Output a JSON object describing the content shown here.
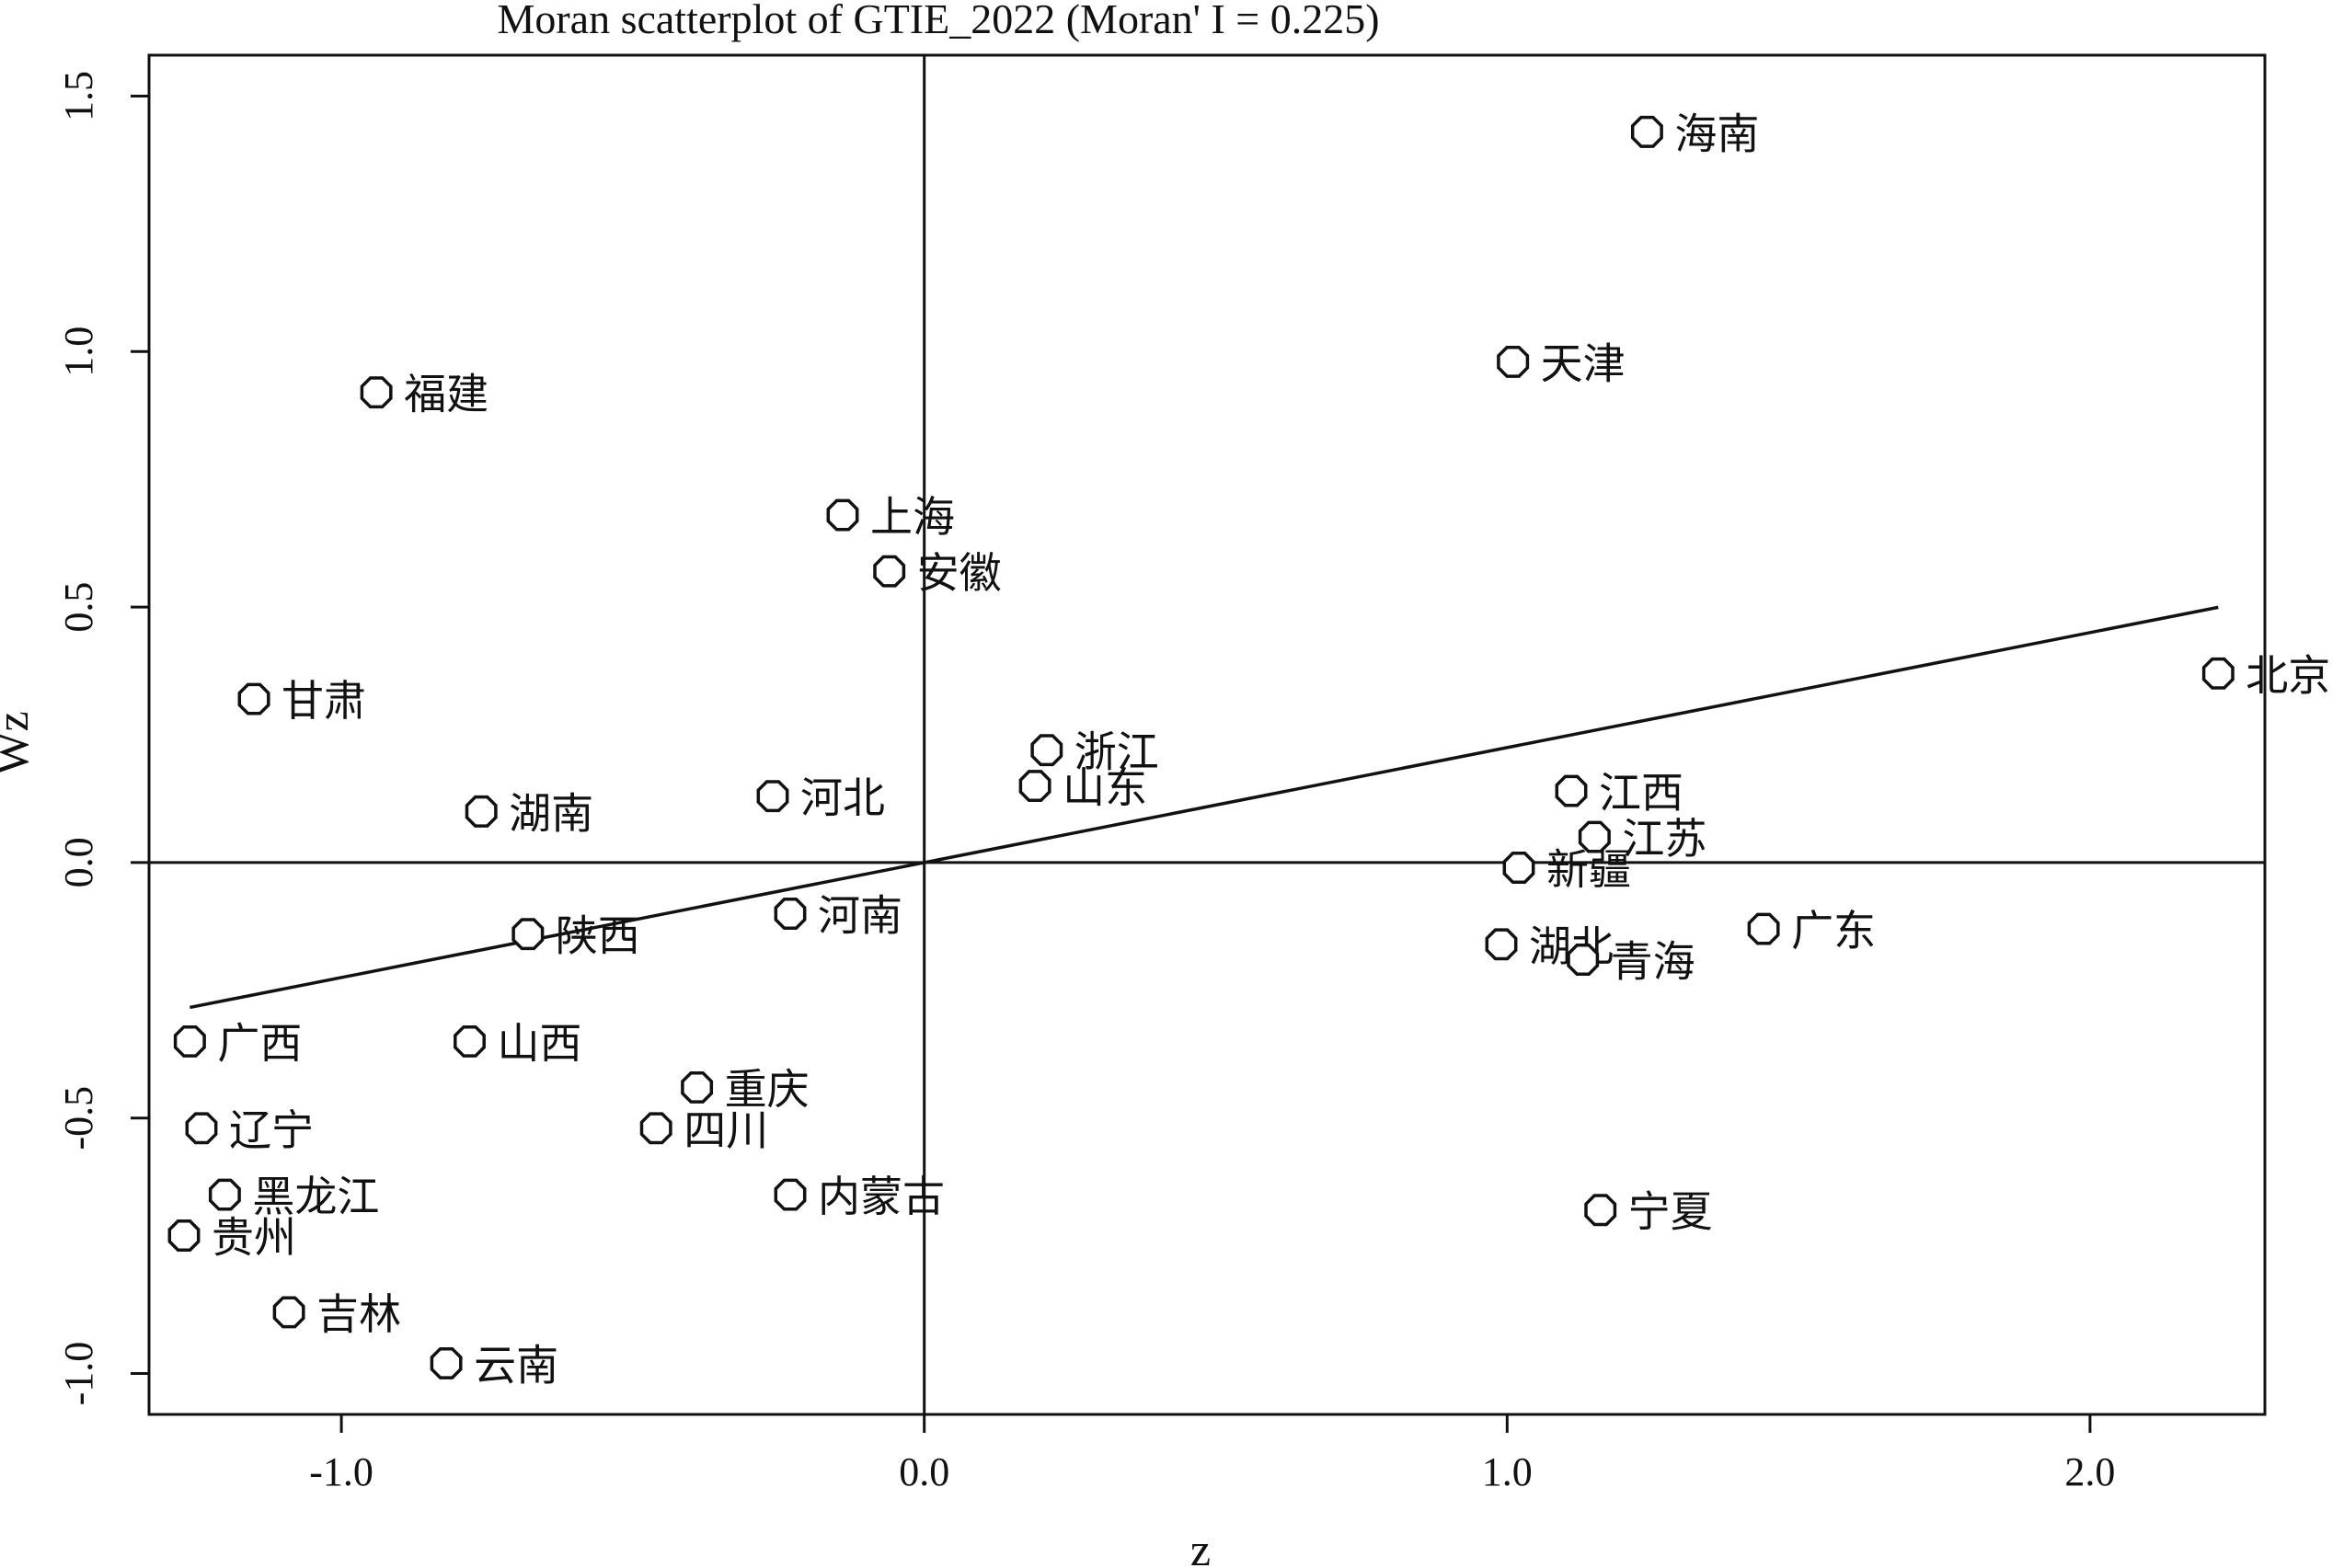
{
  "chart_data": {
    "type": "scatter",
    "title": "Moran scatterplot of GTIE_2022 (Moran' I = 0.225)",
    "xlabel": "z",
    "ylabel": "Wz",
    "xlim": [
      -1.33,
      2.3
    ],
    "ylim": [
      -1.08,
      1.58
    ],
    "xticks": [
      {
        "value": -1.0,
        "label": "-1.0"
      },
      {
        "value": 0.0,
        "label": "0.0"
      },
      {
        "value": 1.0,
        "label": "1.0"
      },
      {
        "value": 2.0,
        "label": "2.0"
      }
    ],
    "yticks": [
      {
        "value": -1.0,
        "label": "-1.0"
      },
      {
        "value": -0.5,
        "label": "-0.5"
      },
      {
        "value": 0.0,
        "label": "0.0"
      },
      {
        "value": 0.5,
        "label": "0.5"
      },
      {
        "value": 1.0,
        "label": "1.0"
      },
      {
        "value": 1.5,
        "label": "1.5"
      }
    ],
    "grid": false,
    "reference_lines": {
      "x": 0,
      "y": 0
    },
    "fit_line": {
      "slope": 0.225,
      "intercept": 0,
      "x_range": [
        -1.26,
        2.22
      ]
    },
    "points": [
      {
        "label": "海南",
        "x": 1.24,
        "y": 1.43
      },
      {
        "label": "天津",
        "x": 1.01,
        "y": 0.98
      },
      {
        "label": "福建",
        "x": -0.94,
        "y": 0.92
      },
      {
        "label": "上海",
        "x": -0.14,
        "y": 0.68
      },
      {
        "label": "安徽",
        "x": -0.06,
        "y": 0.57
      },
      {
        "label": "北京",
        "x": 2.22,
        "y": 0.37
      },
      {
        "label": "甘肃",
        "x": -1.15,
        "y": 0.32
      },
      {
        "label": "浙江",
        "x": 0.21,
        "y": 0.22
      },
      {
        "label": "山东",
        "x": 0.19,
        "y": 0.15
      },
      {
        "label": "江西",
        "x": 1.11,
        "y": 0.14
      },
      {
        "label": "河北",
        "x": -0.26,
        "y": 0.13
      },
      {
        "label": "湖南",
        "x": -0.76,
        "y": 0.1
      },
      {
        "label": "江苏",
        "x": 1.15,
        "y": 0.05
      },
      {
        "label": "新疆",
        "x": 1.02,
        "y": -0.01
      },
      {
        "label": "河南",
        "x": -0.23,
        "y": -0.1
      },
      {
        "label": "广东",
        "x": 1.44,
        "y": -0.13
      },
      {
        "label": "陕西",
        "x": -0.68,
        "y": -0.14
      },
      {
        "label": "湖北",
        "x": 0.99,
        "y": -0.16
      },
      {
        "label": "青海",
        "x": 1.13,
        "y": -0.19
      },
      {
        "label": "广西",
        "x": -1.26,
        "y": -0.35
      },
      {
        "label": "山西",
        "x": -0.78,
        "y": -0.35
      },
      {
        "label": "重庆",
        "x": -0.39,
        "y": -0.44
      },
      {
        "label": "辽宁",
        "x": -1.24,
        "y": -0.52
      },
      {
        "label": "四川",
        "x": -0.46,
        "y": -0.52
      },
      {
        "label": "黑龙江",
        "x": -1.2,
        "y": -0.65
      },
      {
        "label": "内蒙古",
        "x": -0.23,
        "y": -0.65
      },
      {
        "label": "宁夏",
        "x": 1.16,
        "y": -0.68
      },
      {
        "label": "贵州",
        "x": -1.27,
        "y": -0.73
      },
      {
        "label": "吉林",
        "x": -1.09,
        "y": -0.88
      },
      {
        "label": "云南",
        "x": -0.82,
        "y": -0.98
      }
    ]
  }
}
